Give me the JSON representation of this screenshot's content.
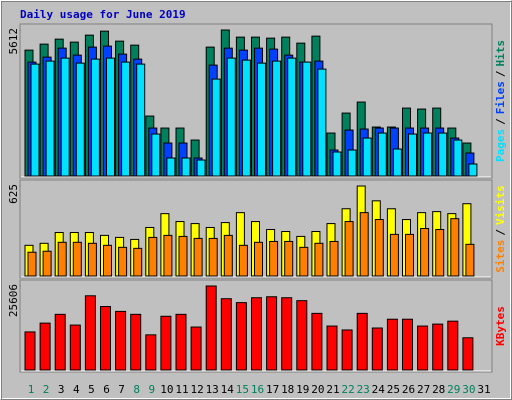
{
  "chart_data": [
    {
      "type": "bar",
      "title": "Daily usage for June 2019",
      "separator": "/",
      "ylim": [
        0,
        5612
      ],
      "yticks": [
        5612
      ],
      "series": [
        {
          "name": "Hits",
          "color": "#00805c",
          "values": [
            4838,
            5069,
            5261,
            5146,
            5414,
            5568,
            5184,
            5030,
            2304,
            1843,
            1843,
            1382,
            4954,
            5612,
            5338,
            5338,
            5299,
            5338,
            5107,
            5376,
            1651,
            2419,
            2842,
            1882,
            1882,
            2611,
            2573,
            2611,
            1843,
            1267,
            null
          ]
        },
        {
          "name": "Files",
          "color": "#0040ff",
          "values": [
            4378,
            4570,
            4915,
            4646,
            4954,
            4992,
            4685,
            4493,
            1843,
            1267,
            1267,
            691,
            4262,
            4915,
            4838,
            4915,
            4877,
            4646,
            4378,
            4416,
            998,
            1766,
            1805,
            1843,
            1843,
            1843,
            1843,
            1843,
            1459,
            883,
            null
          ]
        },
        {
          "name": "Pages",
          "color": "#00e0ff",
          "values": [
            4301,
            4416,
            4531,
            4339,
            4493,
            4531,
            4378,
            4301,
            1613,
            691,
            691,
            614,
            3725,
            4531,
            4454,
            4339,
            4416,
            4531,
            4378,
            4109,
            922,
            998,
            1459,
            1651,
            1037,
            1613,
            1651,
            1651,
            1382,
            461,
            null
          ]
        }
      ]
    },
    {
      "type": "bar",
      "separator": "/",
      "ylim": [
        0,
        625
      ],
      "yticks": [
        625
      ],
      "series": [
        {
          "name": "Visits",
          "color": "#ffff00",
          "values": [
            213,
            227,
            302,
            302,
            302,
            282,
            268,
            254,
            337,
            433,
            378,
            364,
            337,
            371,
            440,
            378,
            323,
            309,
            275,
            309,
            364,
            467,
            625,
            522,
            467,
            392,
            440,
            447,
            433,
            502,
            null
          ]
        },
        {
          "name": "Sites",
          "color": "#ff8000",
          "values": [
            165,
            172,
            234,
            234,
            227,
            213,
            199,
            192,
            268,
            282,
            275,
            261,
            261,
            282,
            213,
            234,
            240,
            240,
            199,
            227,
            240,
            378,
            440,
            392,
            289,
            289,
            330,
            323,
            398,
            220,
            null
          ]
        }
      ]
    },
    {
      "type": "bar",
      "ylim": [
        0,
        25606
      ],
      "yticks": [
        25606
      ],
      "categories": [
        "1",
        "2",
        "3",
        "4",
        "5",
        "6",
        "7",
        "8",
        "9",
        "10",
        "11",
        "12",
        "13",
        "14",
        "15",
        "16",
        "17",
        "18",
        "19",
        "20",
        "21",
        "22",
        "23",
        "24",
        "25",
        "26",
        "27",
        "28",
        "29",
        "30",
        "31"
      ],
      "category_colors": [
        "#00805c",
        "#00805c",
        "#000000",
        "#000000",
        "#000000",
        "#000000",
        "#000000",
        "#00805c",
        "#00805c",
        "#000000",
        "#000000",
        "#000000",
        "#000000",
        "#000000",
        "#00805c",
        "#00805c",
        "#000000",
        "#000000",
        "#000000",
        "#000000",
        "#000000",
        "#00805c",
        "#00805c",
        "#000000",
        "#000000",
        "#000000",
        "#000000",
        "#000000",
        "#00805c",
        "#00805c",
        "#000000"
      ],
      "series": [
        {
          "name": "KBytes",
          "color": "#ff0000",
          "values": [
            11610,
            14290,
            16969,
            13694,
            22625,
            19351,
            17862,
            16969,
            10717,
            16374,
            16969,
            13099,
            25606,
            21732,
            20541,
            22030,
            22328,
            22030,
            21137,
            17267,
            13397,
            12206,
            17267,
            12801,
            15480,
            15480,
            13397,
            13992,
            14885,
            9824,
            null
          ]
        }
      ]
    }
  ]
}
